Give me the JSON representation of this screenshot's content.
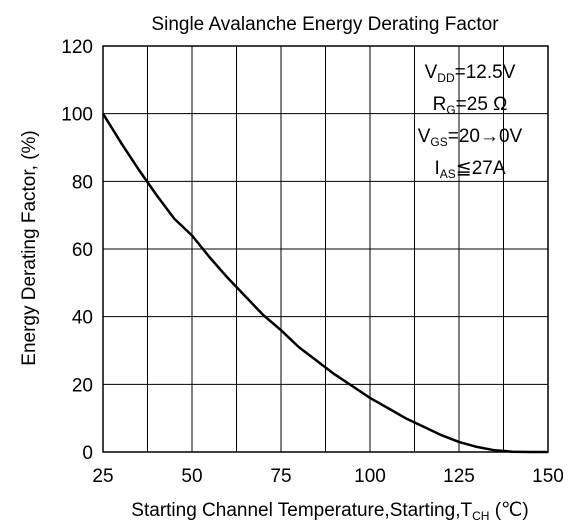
{
  "chart_data": {
    "type": "line",
    "title": "Single Avalanche Energy Derating Factor",
    "xlabel": {
      "main": "Starting Channel Temperature,Starting,T",
      "sub": "CH",
      "unit": " (℃)"
    },
    "ylabel": "Energy Derating Factor, (%)",
    "xlim": [
      25,
      150
    ],
    "ylim": [
      0,
      120
    ],
    "x_ticks": [
      25,
      50,
      75,
      100,
      125,
      150
    ],
    "y_ticks": [
      0,
      20,
      40,
      60,
      80,
      100,
      120
    ],
    "x_tick_labels": [
      "25",
      "50",
      "75",
      "100",
      "125",
      "150"
    ],
    "y_tick_labels": [
      "0",
      "20",
      "40",
      "60",
      "80",
      "100",
      "120"
    ],
    "x_gridlines": [
      25,
      37.5,
      50,
      62.5,
      75,
      87.5,
      100,
      112.5,
      125,
      137.5,
      150
    ],
    "y_gridlines": [
      0,
      20,
      40,
      60,
      80,
      100,
      120
    ],
    "grid": true,
    "series": [
      {
        "x": [
          25,
          30,
          35,
          40,
          45,
          50,
          55,
          60,
          65,
          70,
          75,
          80,
          85,
          90,
          95,
          100,
          105,
          110,
          115,
          120,
          125,
          130,
          135,
          140,
          145,
          150
        ],
        "y": [
          100,
          91.5,
          83.5,
          76.0,
          69.0,
          64.0,
          57.5,
          51.5,
          46.0,
          40.5,
          36.0,
          31.0,
          27.0,
          23.0,
          19.5,
          16.0,
          13.0,
          10.0,
          7.5,
          5.0,
          3.0,
          1.5,
          0.5,
          0.1,
          0.0,
          0.0
        ]
      }
    ],
    "conditions": [
      {
        "main": "V",
        "sub": "DD",
        "rest": "=12.5V"
      },
      {
        "main": "R",
        "sub": "G",
        "rest": "=25 Ω"
      },
      {
        "main": "V",
        "sub": "GS",
        "rest": "=20→0V"
      },
      {
        "main": "I",
        "sub": "AS",
        "rest": "≦27A"
      }
    ],
    "conditions_position": "top-right",
    "colors": {
      "line": "#000000",
      "grid": "#000000",
      "background": "#ffffff"
    }
  }
}
